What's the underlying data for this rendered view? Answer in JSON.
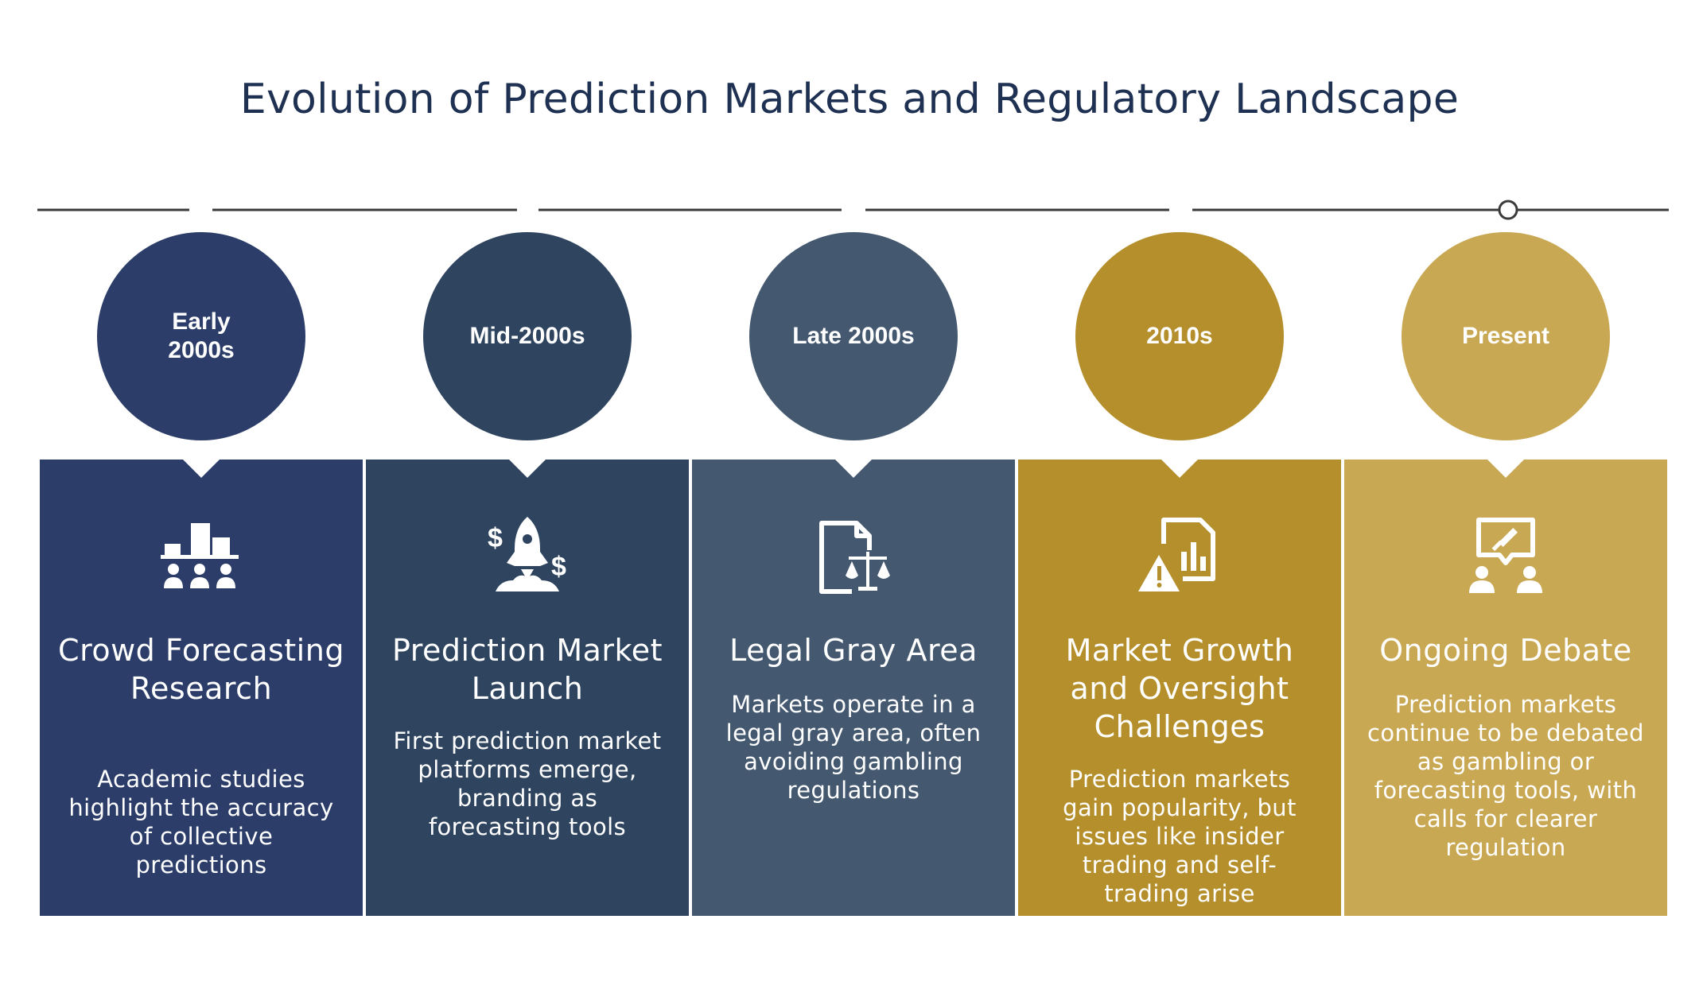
{
  "title": "Evolution of Prediction Markets and Regulatory Landscape",
  "colors": {
    "navy": "#2b3d68",
    "slate_dark": "#2e445f",
    "slate": "#44586f",
    "gold_dark": "#b48f2b",
    "gold": "#c9a853",
    "line": "#3a3a3a"
  },
  "stages": [
    {
      "period": "Early 2000s",
      "title": "Crowd Forecasting Research",
      "description": "Academic studies highlight the accuracy of collective predictions",
      "icon": "crowd-chart-icon"
    },
    {
      "period": "Mid-2000s",
      "title": "Prediction Market Launch",
      "description": "First prediction market platforms emerge, branding as forecasting tools",
      "icon": "rocket-dollar-icon"
    },
    {
      "period": "Late 2000s",
      "title": "Legal Gray Area",
      "description": "Markets operate in a legal gray area, often avoiding gambling regulations",
      "icon": "document-scales-icon"
    },
    {
      "period": "2010s",
      "title": "Market Growth and Oversight Challenges",
      "description": "Prediction markets gain popularity, but issues like insider trading and self-trading arise",
      "icon": "report-warning-icon"
    },
    {
      "period": "Present",
      "title": "Ongoing Debate",
      "description": "Prediction markets continue to be debated as gambling or forecasting tools, with calls for clearer regulation",
      "icon": "debate-people-icon"
    }
  ]
}
